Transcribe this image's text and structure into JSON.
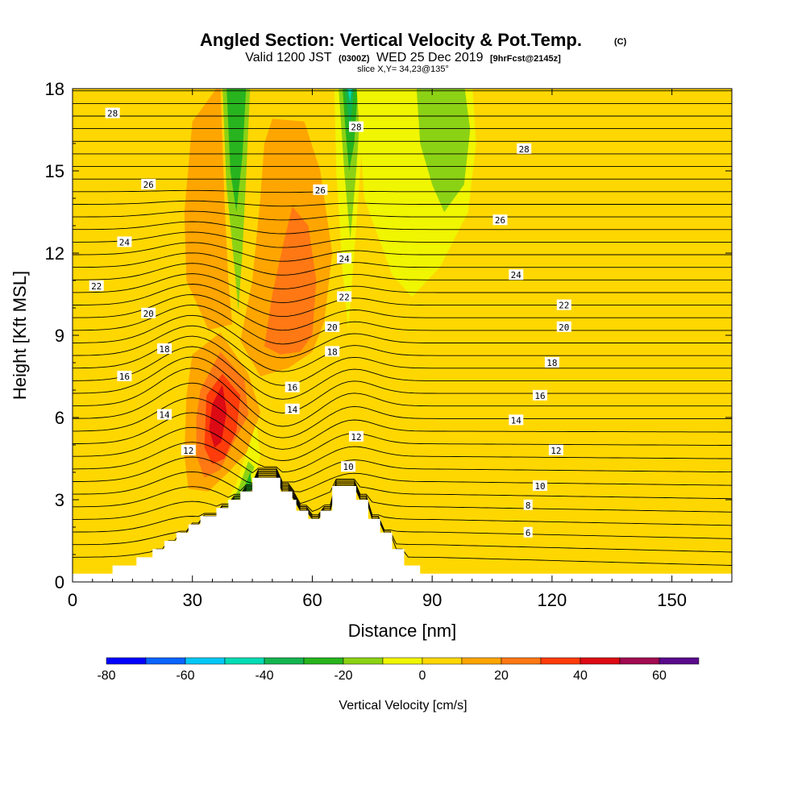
{
  "header": {
    "title_main": "Angled Section: Vertical Velocity & Pot.Temp.",
    "title_tag": "(C)",
    "valid_prefix": "Valid 1200 JST",
    "valid_utc": "(0300Z)",
    "valid_date": "WED 25 Dec 2019",
    "valid_fcst": "[9hrFcst@2145z]",
    "slice": "slice X,Y= 34,23@135°"
  },
  "colorbar": {
    "label": "Vertical Velocity [cm/s]",
    "ticks": [
      "-80",
      "-60",
      "-40",
      "-20",
      "0",
      "20",
      "40",
      "60"
    ],
    "colors": [
      "#0000ff",
      "#0a64ff",
      "#00c8f8",
      "#00dcb4",
      "#14b450",
      "#28b41e",
      "#8cd214",
      "#f0f500",
      "#ffd700",
      "#ffa500",
      "#ff7814",
      "#ff3c0a",
      "#dc0a14",
      "#a00a50",
      "#5a0a8c"
    ]
  },
  "chart_data": {
    "type": "heatmap",
    "title": "Angled Section: Vertical Velocity & Pot.Temp.",
    "xlabel": "Distance [nm]",
    "ylabel": "Height [Kft MSL]",
    "xlim": [
      0,
      165
    ],
    "ylim": [
      0,
      18
    ],
    "xticks": [
      "0",
      "30",
      "60",
      "90",
      "120",
      "150"
    ],
    "yticks": [
      "0",
      "3",
      "6",
      "9",
      "12",
      "15",
      "18"
    ],
    "color_variable": "Vertical Velocity [cm/s]",
    "color_levels": [
      -80,
      -70,
      -60,
      -50,
      -40,
      -30,
      -20,
      -10,
      0,
      10,
      20,
      30,
      40,
      50,
      60,
      70
    ],
    "contour_variable": "Potential Temperature [C]",
    "contour_labels": [
      {
        "text": "28",
        "x": 10,
        "y": 17.1
      },
      {
        "text": "28",
        "x": 71,
        "y": 16.6
      },
      {
        "text": "28",
        "x": 113,
        "y": 15.8
      },
      {
        "text": "26",
        "x": 19,
        "y": 14.5
      },
      {
        "text": "26",
        "x": 62,
        "y": 14.3
      },
      {
        "text": "26",
        "x": 107,
        "y": 13.2
      },
      {
        "text": "24",
        "x": 13,
        "y": 12.4
      },
      {
        "text": "24",
        "x": 68,
        "y": 11.8
      },
      {
        "text": "24",
        "x": 111,
        "y": 11.2
      },
      {
        "text": "22",
        "x": 6,
        "y": 10.8
      },
      {
        "text": "22",
        "x": 68,
        "y": 10.4
      },
      {
        "text": "22",
        "x": 123,
        "y": 10.1
      },
      {
        "text": "20",
        "x": 19,
        "y": 9.8
      },
      {
        "text": "20",
        "x": 65,
        "y": 9.3
      },
      {
        "text": "20",
        "x": 123,
        "y": 9.3
      },
      {
        "text": "18",
        "x": 23,
        "y": 8.5
      },
      {
        "text": "18",
        "x": 65,
        "y": 8.4
      },
      {
        "text": "18",
        "x": 120,
        "y": 8.0
      },
      {
        "text": "16",
        "x": 13,
        "y": 7.5
      },
      {
        "text": "16",
        "x": 55,
        "y": 7.1
      },
      {
        "text": "16",
        "x": 117,
        "y": 6.8
      },
      {
        "text": "14",
        "x": 23,
        "y": 6.1
      },
      {
        "text": "14",
        "x": 55,
        "y": 6.3
      },
      {
        "text": "14",
        "x": 111,
        "y": 5.9
      },
      {
        "text": "12",
        "x": 29,
        "y": 4.8
      },
      {
        "text": "12",
        "x": 71,
        "y": 5.3
      },
      {
        "text": "12",
        "x": 121,
        "y": 4.8
      },
      {
        "text": "10",
        "x": 69,
        "y": 4.2
      },
      {
        "text": "10",
        "x": 117,
        "y": 3.5
      },
      {
        "text": "8",
        "x": 114,
        "y": 2.8
      },
      {
        "text": "6",
        "x": 114,
        "y": 1.8
      }
    ],
    "terrain_kft": [
      [
        0,
        0.3
      ],
      [
        10,
        0.3
      ],
      [
        10,
        0.6
      ],
      [
        16,
        0.6
      ],
      [
        16,
        0.9
      ],
      [
        20,
        0.9
      ],
      [
        20,
        1.2
      ],
      [
        23,
        1.2
      ],
      [
        23,
        1.5
      ],
      [
        26,
        1.5
      ],
      [
        26,
        1.8
      ],
      [
        29,
        1.8
      ],
      [
        29,
        2.1
      ],
      [
        32,
        2.1
      ],
      [
        32,
        2.4
      ],
      [
        36,
        2.4
      ],
      [
        36,
        2.7
      ],
      [
        39,
        2.7
      ],
      [
        39,
        3.0
      ],
      [
        42,
        3.0
      ],
      [
        42,
        3.3
      ],
      [
        45,
        3.3
      ],
      [
        45,
        3.8
      ],
      [
        52,
        3.8
      ],
      [
        52,
        3.3
      ],
      [
        55,
        3.3
      ],
      [
        55,
        3.0
      ],
      [
        56,
        3.0
      ],
      [
        56,
        2.6
      ],
      [
        59,
        2.6
      ],
      [
        59,
        2.3
      ],
      [
        62,
        2.3
      ],
      [
        62,
        2.6
      ],
      [
        65,
        2.6
      ],
      [
        65,
        3.5
      ],
      [
        71,
        3.5
      ],
      [
        71,
        3.0
      ],
      [
        74,
        3.0
      ],
      [
        74,
        2.3
      ],
      [
        77,
        2.3
      ],
      [
        77,
        1.8
      ],
      [
        80,
        1.8
      ],
      [
        80,
        1.2
      ],
      [
        83,
        1.2
      ],
      [
        83,
        0.6
      ],
      [
        87,
        0.6
      ],
      [
        87,
        0.3
      ],
      [
        165,
        0.3
      ]
    ],
    "velocity_features": [
      {
        "sign": "down",
        "peak_cm_s": -40,
        "x": 41,
        "y_range": [
          11,
          18
        ]
      },
      {
        "sign": "down",
        "peak_cm_s": -50,
        "x": 69,
        "y_range": [
          9,
          18
        ]
      },
      {
        "sign": "down",
        "peak_cm_s": -30,
        "x": 92,
        "y_range": [
          13,
          18
        ]
      },
      {
        "sign": "down",
        "peak_cm_s": -30,
        "x": 44,
        "y_range": [
          3,
          6
        ]
      },
      {
        "sign": "up",
        "peak_cm_s": 40,
        "x": 37,
        "y_range": [
          4.5,
          7.5
        ]
      },
      {
        "sign": "up",
        "peak_cm_s": 30,
        "x": 56,
        "y_range": [
          8,
          13
        ]
      }
    ],
    "grid": false
  }
}
